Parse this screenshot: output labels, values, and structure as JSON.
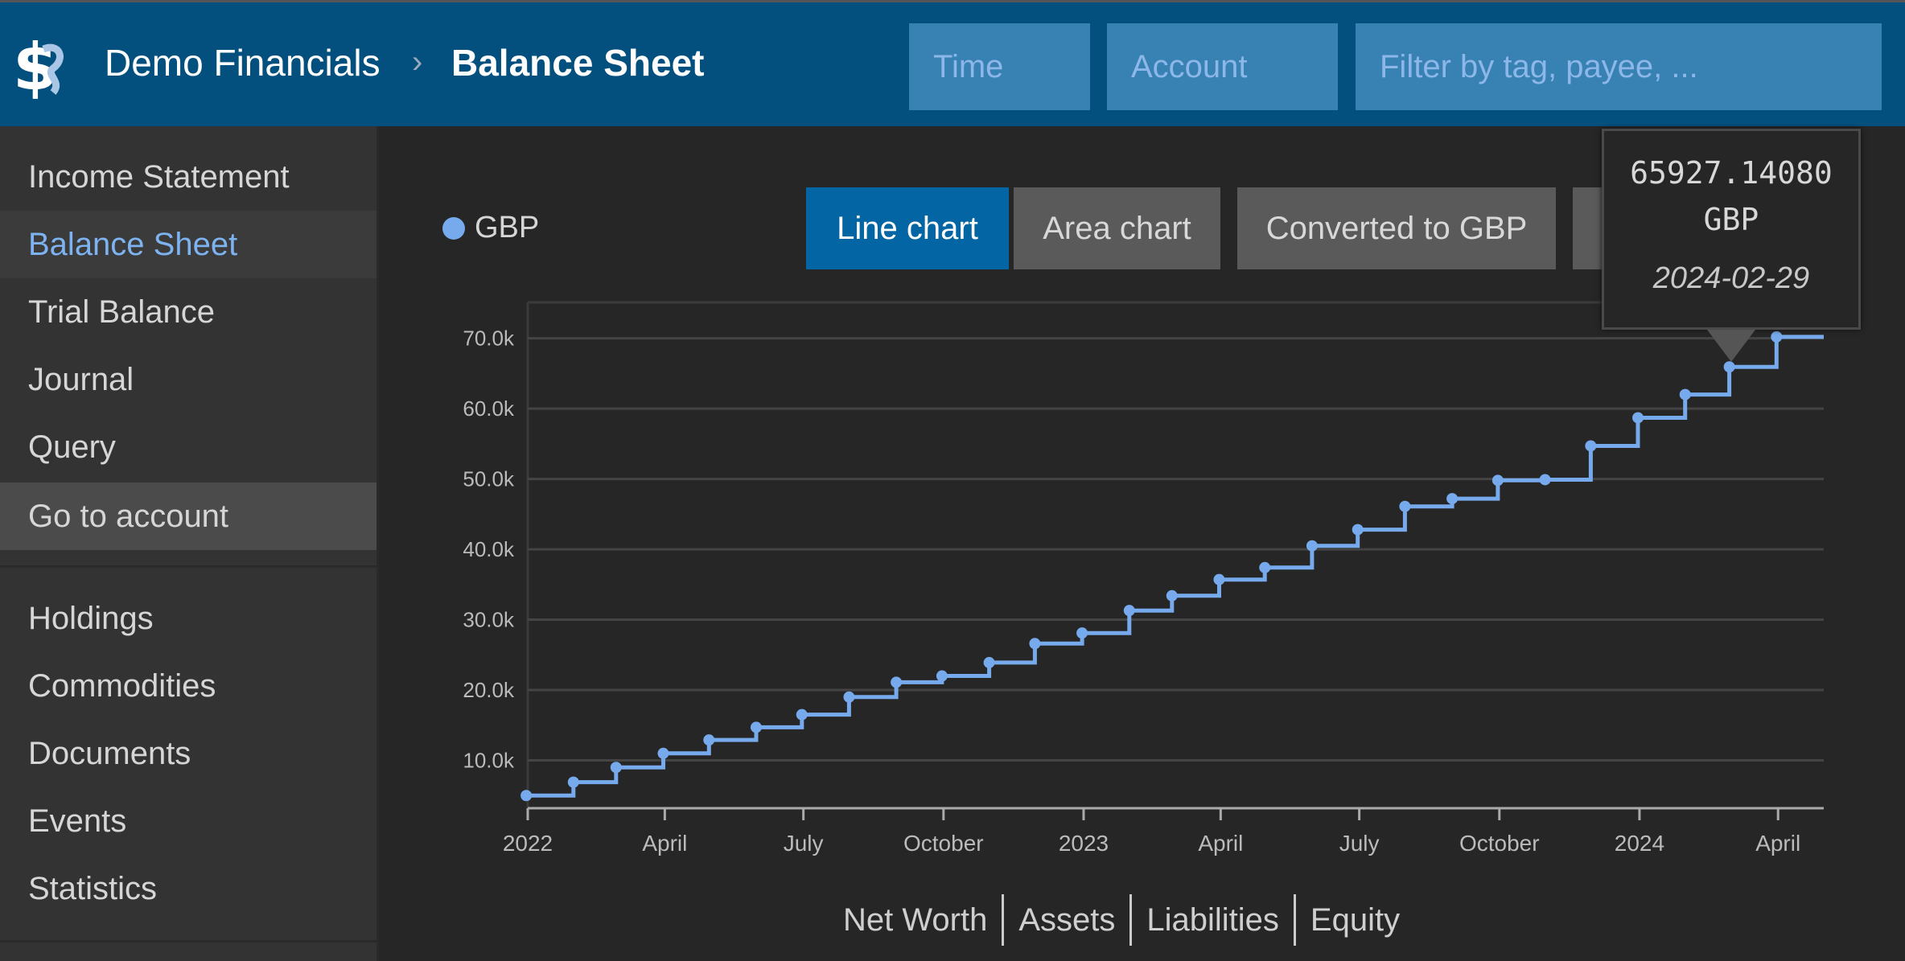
{
  "header": {
    "app_name": "Demo Financials",
    "separator": "›",
    "page_title": "Balance Sheet",
    "time_placeholder": "Time",
    "account_placeholder": "Account",
    "filter_placeholder": "Filter by tag, payee, ..."
  },
  "sidebar": {
    "items": [
      {
        "label": "Income Statement"
      },
      {
        "label": "Balance Sheet",
        "active": true
      },
      {
        "label": "Trial Balance"
      },
      {
        "label": "Journal"
      },
      {
        "label": "Query"
      },
      {
        "label": "Go to account",
        "hover": true
      }
    ],
    "items2": [
      {
        "label": "Holdings"
      },
      {
        "label": "Commodities"
      },
      {
        "label": "Documents"
      },
      {
        "label": "Events"
      },
      {
        "label": "Statistics"
      }
    ]
  },
  "toolbar": {
    "legend_label": "GBP",
    "line_chart": "Line chart",
    "area_chart": "Area chart",
    "converted": "Converted to GBP"
  },
  "tooltip": {
    "value": "65927.14080",
    "currency": "GBP",
    "date": "2024-02-29"
  },
  "bottom_tabs": [
    "Net Worth",
    "Assets",
    "Liabilities",
    "Equity"
  ],
  "colors": {
    "header": "#03507f",
    "accent": "#0365a3",
    "series": "#77aaec",
    "active_link": "#7db3f0"
  },
  "chart_data": {
    "type": "line",
    "step": true,
    "series": [
      {
        "name": "GBP",
        "x": [
          "2021-12-31",
          "2022-01-31",
          "2022-02-28",
          "2022-03-31",
          "2022-04-30",
          "2022-05-31",
          "2022-06-30",
          "2022-07-31",
          "2022-08-31",
          "2022-09-30",
          "2022-10-31",
          "2022-11-30",
          "2022-12-31",
          "2023-01-31",
          "2023-02-28",
          "2023-03-31",
          "2023-04-30",
          "2023-05-31",
          "2023-06-30",
          "2023-07-31",
          "2023-08-31",
          "2023-09-30",
          "2023-10-31",
          "2023-11-30",
          "2023-12-31",
          "2024-01-31",
          "2024-02-29",
          "2024-03-31"
        ],
        "y": [
          5000,
          6900,
          9000,
          11000,
          12900,
          14700,
          16500,
          19000,
          21100,
          22000,
          23900,
          26600,
          28100,
          31300,
          33400,
          35700,
          37400,
          40500,
          42800,
          46100,
          47200,
          49800,
          49900,
          54700,
          58700,
          62000,
          65927.1408,
          70200
        ]
      }
    ],
    "xlim": [
      "2022-01-01",
      "2024-05-01"
    ],
    "ylim": [
      3200,
      75100
    ],
    "x_ticks": [
      {
        "date": "2022-01-01",
        "label": "2022"
      },
      {
        "date": "2022-04-01",
        "label": "April"
      },
      {
        "date": "2022-07-01",
        "label": "July"
      },
      {
        "date": "2022-10-01",
        "label": "October"
      },
      {
        "date": "2023-01-01",
        "label": "2023"
      },
      {
        "date": "2023-04-01",
        "label": "April"
      },
      {
        "date": "2023-07-01",
        "label": "July"
      },
      {
        "date": "2023-10-01",
        "label": "October"
      },
      {
        "date": "2024-01-01",
        "label": "2024"
      },
      {
        "date": "2024-04-01",
        "label": "April"
      }
    ],
    "y_ticks": [
      {
        "value": 10000,
        "label": "10.0k"
      },
      {
        "value": 20000,
        "label": "20.0k"
      },
      {
        "value": 30000,
        "label": "30.0k"
      },
      {
        "value": 40000,
        "label": "40.0k"
      },
      {
        "value": 50000,
        "label": "50.0k"
      },
      {
        "value": 60000,
        "label": "60.0k"
      },
      {
        "value": 70000,
        "label": "70.0k"
      }
    ],
    "grid": true,
    "legend": "top-left"
  }
}
